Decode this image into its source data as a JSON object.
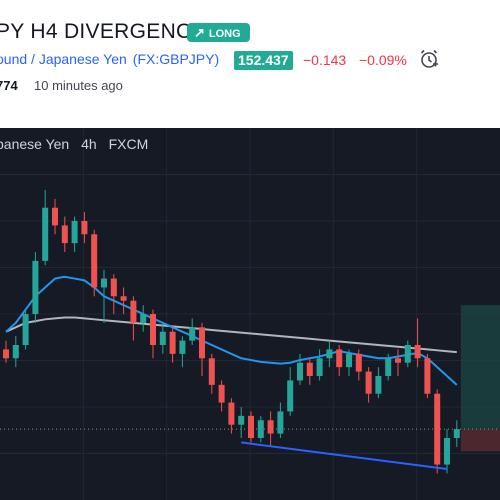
{
  "header": {
    "title": "PY H4 DIVERGENCE",
    "badge_label": "LONG",
    "symbol_name": "ound / Japanese Yen",
    "ticker": "(FX:GBPJPY)",
    "price": "152.437",
    "change": "−0.143",
    "change_pct": "−0.09%",
    "views": "774",
    "posted": "10 minutes ago"
  },
  "chart": {
    "legend": {
      "name": "panese Yen",
      "interval": "4h",
      "exchange": "FXCM"
    },
    "colors": {
      "background": "#161a25",
      "up": "#26a69a",
      "down": "#ef5350",
      "ma_fast": "#2196f3",
      "ma_slow": "#b2b5be",
      "trendline": "#2962ff"
    }
  },
  "chart_data": {
    "type": "candlestick",
    "timeframe": "4h",
    "series": [
      {
        "name": "price",
        "ohlc": [
          [
            152.9,
            152.8,
            152.75,
            153.0
          ],
          [
            152.8,
            152.95,
            152.7,
            153.05
          ],
          [
            152.95,
            153.3,
            152.9,
            153.35
          ],
          [
            153.3,
            153.9,
            153.2,
            154.0
          ],
          [
            153.9,
            154.5,
            153.85,
            154.7
          ],
          [
            154.5,
            154.3,
            154.2,
            154.6
          ],
          [
            154.3,
            154.1,
            154.0,
            154.4
          ],
          [
            154.1,
            154.35,
            154.0,
            154.4
          ],
          [
            154.35,
            154.2,
            154.1,
            154.45
          ],
          [
            154.2,
            153.6,
            153.5,
            154.25
          ],
          [
            153.6,
            153.7,
            153.2,
            153.8
          ],
          [
            153.7,
            153.5,
            153.3,
            153.75
          ],
          [
            153.5,
            153.45,
            153.3,
            153.6
          ],
          [
            153.45,
            153.2,
            153.0,
            153.5
          ],
          [
            153.2,
            153.3,
            153.1,
            153.4
          ],
          [
            153.3,
            152.95,
            152.8,
            153.35
          ],
          [
            152.95,
            153.1,
            152.85,
            153.2
          ],
          [
            153.1,
            152.85,
            152.75,
            153.15
          ],
          [
            152.85,
            153.0,
            152.7,
            153.05
          ],
          [
            153.0,
            153.15,
            152.95,
            153.25
          ],
          [
            153.15,
            152.8,
            152.6,
            153.2
          ],
          [
            152.8,
            152.5,
            152.4,
            152.85
          ],
          [
            152.5,
            152.3,
            152.2,
            152.55
          ],
          [
            152.3,
            152.05,
            151.95,
            152.35
          ],
          [
            152.05,
            152.15,
            151.9,
            152.25
          ],
          [
            152.15,
            151.9,
            151.85,
            152.2
          ],
          [
            151.9,
            152.1,
            151.85,
            152.15
          ],
          [
            152.1,
            151.95,
            151.8,
            152.2
          ],
          [
            151.95,
            152.2,
            151.9,
            152.3
          ],
          [
            152.2,
            152.55,
            152.15,
            152.7
          ],
          [
            152.55,
            152.75,
            152.5,
            152.85
          ],
          [
            152.75,
            152.6,
            152.5,
            152.8
          ],
          [
            152.6,
            152.8,
            152.55,
            152.9
          ],
          [
            152.8,
            152.9,
            152.7,
            153.0
          ],
          [
            152.9,
            152.7,
            152.6,
            152.95
          ],
          [
            152.7,
            152.85,
            152.6,
            152.9
          ],
          [
            152.85,
            152.65,
            152.55,
            152.9
          ],
          [
            152.65,
            152.4,
            152.3,
            152.7
          ],
          [
            152.4,
            152.6,
            152.35,
            152.7
          ],
          [
            152.6,
            152.8,
            152.55,
            152.85
          ],
          [
            152.8,
            152.75,
            152.6,
            152.9
          ],
          [
            152.75,
            152.95,
            152.7,
            153.0
          ],
          [
            152.95,
            152.8,
            152.7,
            153.25
          ],
          [
            152.8,
            152.4,
            152.35,
            152.85
          ],
          [
            152.4,
            151.6,
            151.5,
            152.45
          ],
          [
            151.6,
            151.9,
            151.5,
            152.0
          ],
          [
            151.9,
            152.0,
            151.8,
            152.1
          ]
        ]
      },
      {
        "name": "MA fast",
        "values": [
          153.1,
          153.2,
          153.35,
          153.5,
          153.6,
          153.7,
          153.72,
          153.7,
          153.68,
          153.6,
          153.5,
          153.45,
          153.4,
          153.35,
          153.3,
          153.25,
          153.2,
          153.15,
          153.1,
          153.05,
          153.0,
          152.95,
          152.9,
          152.85,
          152.8,
          152.78,
          152.76,
          152.75,
          152.74,
          152.75,
          152.78,
          152.8,
          152.82,
          152.85,
          152.88,
          152.86,
          152.84,
          152.82,
          152.8,
          152.8,
          152.82,
          152.84,
          152.86,
          152.8,
          152.7,
          152.6,
          152.5
        ]
      },
      {
        "name": "MA slow",
        "values": [
          153.1,
          153.15,
          153.2,
          153.22,
          153.24,
          153.25,
          153.26,
          153.26,
          153.25,
          153.24,
          153.23,
          153.22,
          153.21,
          153.2,
          153.19,
          153.18,
          153.17,
          153.16,
          153.15,
          153.14,
          153.13,
          153.12,
          153.11,
          153.1,
          153.09,
          153.08,
          153.07,
          153.06,
          153.05,
          153.04,
          153.03,
          153.02,
          153.01,
          153.0,
          152.99,
          152.98,
          152.97,
          152.96,
          152.95,
          152.94,
          152.93,
          152.92,
          152.91,
          152.9,
          152.89,
          152.88,
          152.87
        ]
      }
    ],
    "ylim": [
      151.2,
      155.4
    ],
    "grid": true
  }
}
